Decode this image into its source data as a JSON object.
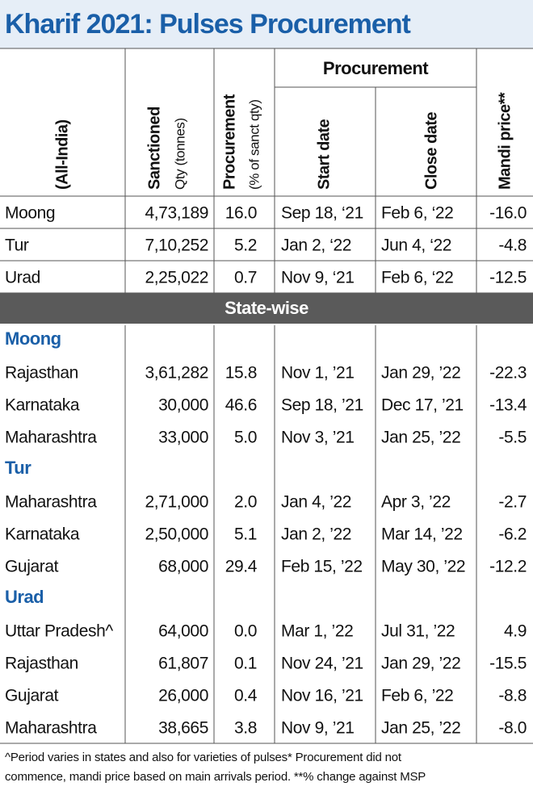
{
  "title": "Kharif 2021: Pulses Procurement",
  "header": {
    "label": "(All-India)",
    "sanctioned": "Sanctioned",
    "sanctioned_unit": "Qty (tonnes)",
    "procurement": "Procurement",
    "procurement_unit": "(% of sanct qty)",
    "procurement_group": "Procurement",
    "start": "Start date",
    "close": "Close date",
    "mandi": "Mandi price**"
  },
  "all_india": [
    [
      "Moong",
      "4,73,189",
      "16.0",
      "Sep 18, ‘21",
      "Feb 6, ‘22",
      "-16.0"
    ],
    [
      "Tur",
      "7,10,252",
      "5.2",
      "Jan 2, ‘22",
      "Jun 4, ‘22",
      "-4.8"
    ],
    [
      "Urad",
      "2,25,022",
      "0.7",
      "Nov 9, ‘21",
      "Feb 6, ‘22",
      "-12.5"
    ]
  ],
  "state_wise_label": "State-wise",
  "groups": [
    {
      "name": "Moong",
      "rows": [
        [
          "Rajasthan",
          "3,61,282",
          "15.8",
          "Nov 1, ’21",
          "Jan 29, ’22",
          "-22.3"
        ],
        [
          "Karnataka",
          "30,000",
          "46.6",
          "Sep 18, ’21",
          "Dec 17, ’21",
          "-13.4"
        ],
        [
          "Maharashtra",
          "33,000",
          "5.0",
          "Nov 3, ’21",
          "Jan 25, ’22",
          "-5.5"
        ]
      ]
    },
    {
      "name": "Tur",
      "rows": [
        [
          "Maharashtra",
          "2,71,000",
          "2.0",
          "Jan 4, ’22",
          "Apr 3, ’22",
          "-2.7"
        ],
        [
          "Karnataka",
          "2,50,000",
          "5.1",
          "Jan 2, ’22",
          "Mar 14, ’22",
          "-6.2"
        ],
        [
          "Gujarat",
          "68,000",
          "29.4",
          "Feb 15, ’22",
          "May 30, ’22",
          "-12.2"
        ]
      ]
    },
    {
      "name": "Urad",
      "rows": [
        [
          "Uttar Pradesh^",
          "64,000",
          "0.0",
          "Mar 1, ’22",
          "Jul 31, ’22",
          "4.9"
        ],
        [
          "Rajasthan",
          "61,807",
          "0.1",
          "Nov 24, ’21",
          "Jan 29, ’22",
          "-15.5"
        ],
        [
          "Gujarat",
          "26,000",
          "0.4",
          "Nov 16, ’21",
          "Feb 6, ’22",
          "-8.8"
        ],
        [
          "Maharashtra",
          "38,665",
          "3.8",
          "Nov 9, ’21",
          "Jan 25, ’22",
          "-8.0"
        ]
      ]
    }
  ],
  "footnote": [
    "^Period varies in states and also for varieties of pulses* Procurement did not",
    "commence, mandi price based on main arrivals period.    **% change against MSP"
  ]
}
